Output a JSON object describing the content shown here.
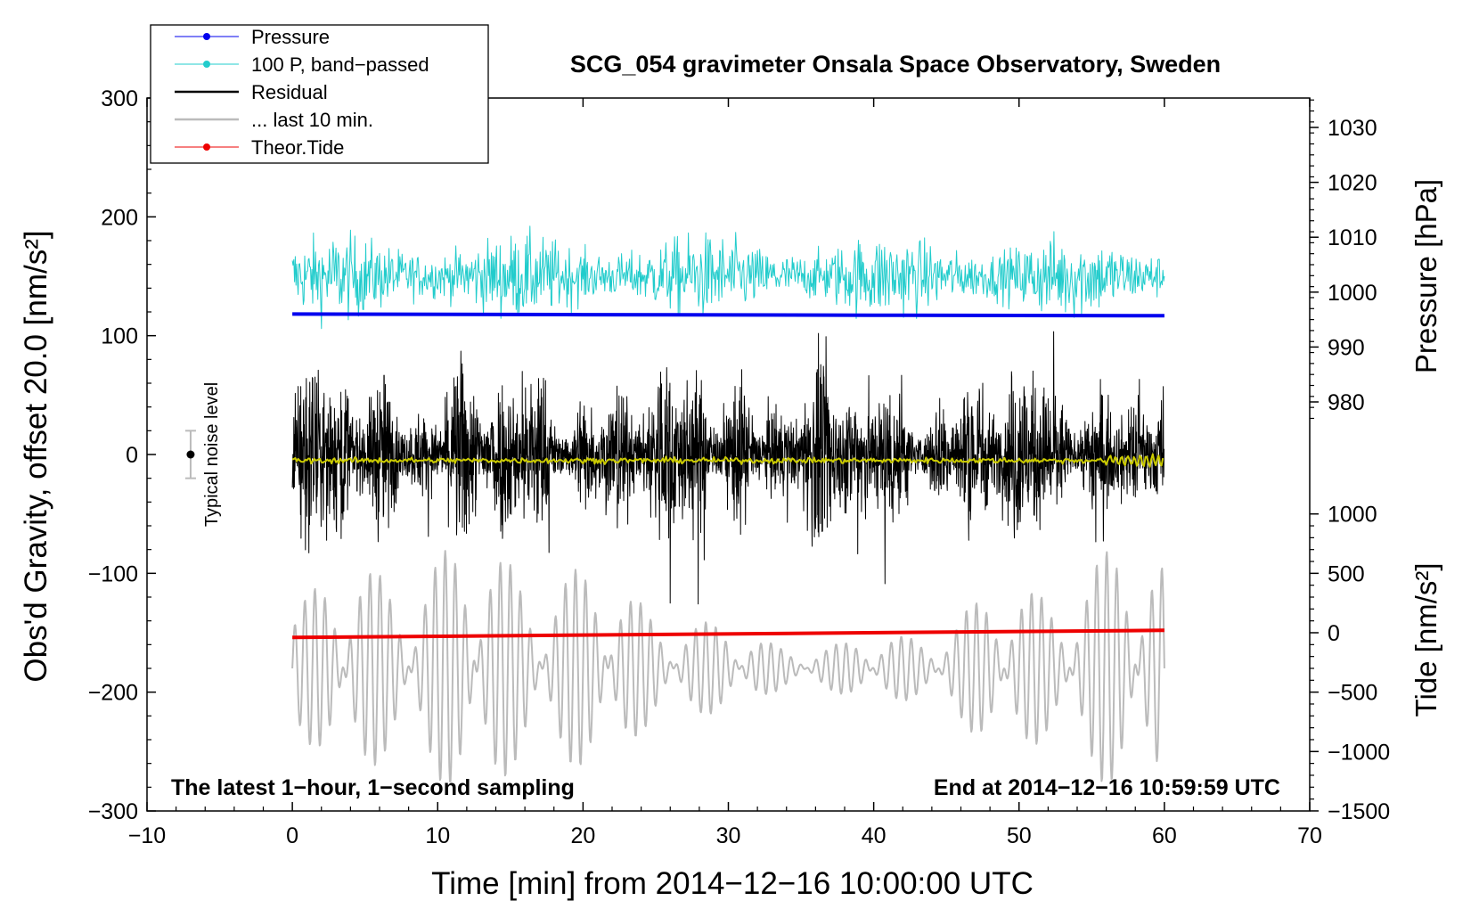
{
  "chart_data": {
    "type": "line",
    "title": "SCG_054 gravimeter Onsala Space Observatory, Sweden",
    "xlabel": "Time [min] from 2014−12−16 10:00:00 UTC",
    "ylabel_left": "Obs'd Gravity, offset 20.0 [nm/s²]",
    "ylabel_right_top": "Pressure [hPa]",
    "ylabel_right_bottom": "Tide [nm/s²]",
    "xlim": [
      -10,
      70
    ],
    "ylim": [
      -300,
      300
    ],
    "x_ticks": [
      "−10",
      "0",
      "10",
      "20",
      "30",
      "40",
      "50",
      "60",
      "70"
    ],
    "y_ticks_left": [
      "300",
      "200",
      "100",
      "0",
      "−100",
      "−200",
      "−300"
    ],
    "pressure_ticks": [
      "1030",
      "1020",
      "1010",
      "1000",
      "990",
      "980"
    ],
    "tide_ticks": [
      "1000",
      "500",
      "0",
      "−500",
      "−1000",
      "−1500"
    ],
    "legend": {
      "placement": "top-left",
      "entries": [
        {
          "label": "Pressure",
          "color": "#0000ee"
        },
        {
          "label": "100 P, band−passed",
          "color": "#22cccc"
        },
        {
          "label": "Residual",
          "color": "#000000"
        },
        {
          "label": "... last 10 min.",
          "color": "#bbbbbb"
        },
        {
          "label": "Theor.Tide",
          "color": "#ee0000"
        }
      ]
    },
    "annotations": {
      "left": "The latest 1−hour, 1−second sampling",
      "right": "End at 2014−12−16 10:59:59 UTC",
      "noise": "Typical noise level"
    },
    "noise_bar": {
      "x": -7,
      "y": 0,
      "halfwidth": 20
    },
    "series": [
      {
        "name": "Pressure",
        "axis": "pressure",
        "x": [
          0,
          20,
          40,
          60
        ],
        "values": [
          996.0,
          995.9,
          995.8,
          995.7
        ],
        "color": "#0000ee"
      },
      {
        "name": "100 P, band-passed",
        "axis": "gravity",
        "x_range": [
          0,
          60
        ],
        "center": 150,
        "amplitude": 25,
        "color": "#22cccc"
      },
      {
        "name": "Residual",
        "axis": "gravity",
        "x_range": [
          0,
          60
        ],
        "center": 0,
        "amplitude": 60,
        "color": "#000000"
      },
      {
        "name": "Residual smoothed",
        "axis": "gravity",
        "x_range": [
          0,
          60
        ],
        "center": -5,
        "amplitude": 2,
        "color": "#cccc00"
      },
      {
        "name": "... last 10 min.",
        "axis": "tide",
        "x_range": [
          0,
          60
        ],
        "center": -300,
        "amplitude": 1100,
        "color": "#bbbbbb"
      },
      {
        "name": "Theor.Tide",
        "axis": "tide",
        "x": [
          0,
          60
        ],
        "values": [
          -40,
          20
        ],
        "color": "#ee0000"
      }
    ]
  }
}
